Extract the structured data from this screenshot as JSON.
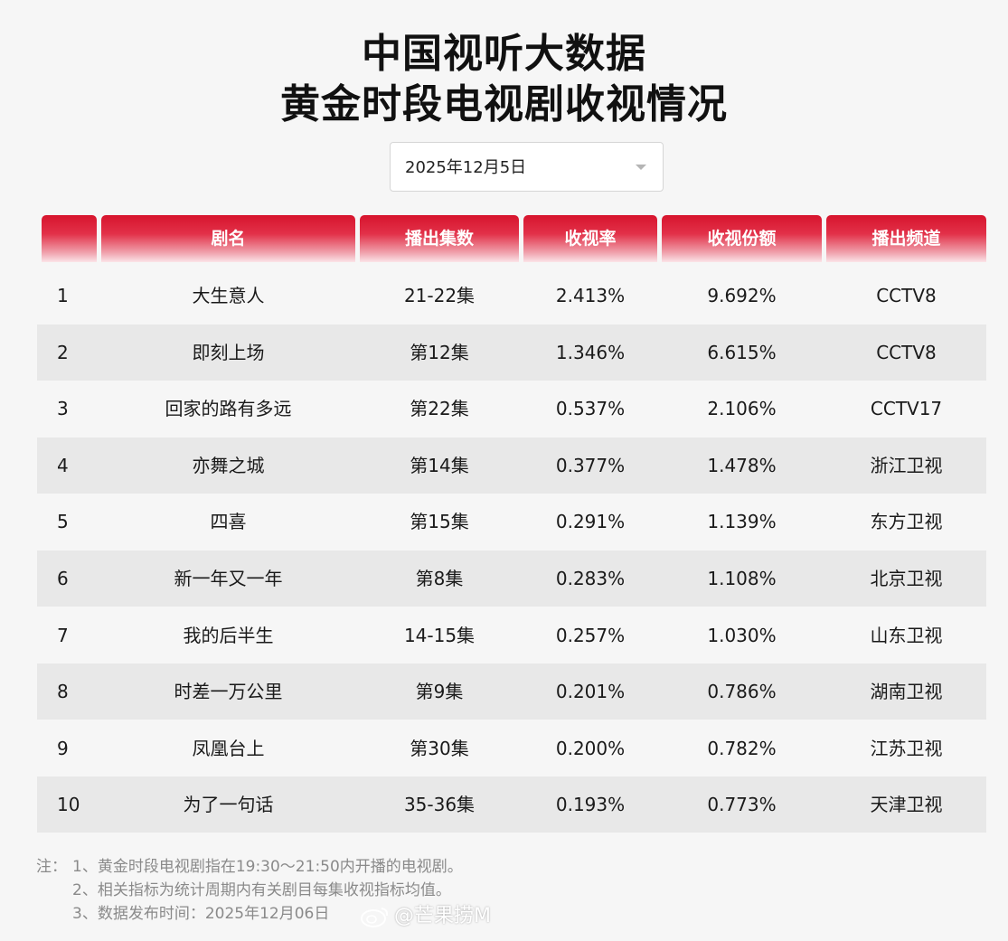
{
  "title": {
    "line1": "中国视听大数据",
    "line2": "黄金时段电视剧收视情况"
  },
  "date_select": {
    "value": "2025年12月5日"
  },
  "table": {
    "headers": [
      "",
      "剧名",
      "播出集数",
      "收视率",
      "收视份额",
      "播出频道"
    ],
    "rows": [
      [
        "1",
        "大生意人",
        "21-22集",
        "2.413%",
        "9.692%",
        "CCTV8"
      ],
      [
        "2",
        "即刻上场",
        "第12集",
        "1.346%",
        "6.615%",
        "CCTV8"
      ],
      [
        "3",
        "回家的路有多远",
        "第22集",
        "0.537%",
        "2.106%",
        "CCTV17"
      ],
      [
        "4",
        "亦舞之城",
        "第14集",
        "0.377%",
        "1.478%",
        "浙江卫视"
      ],
      [
        "5",
        "四喜",
        "第15集",
        "0.291%",
        "1.139%",
        "东方卫视"
      ],
      [
        "6",
        "新一年又一年",
        "第8集",
        "0.283%",
        "1.108%",
        "北京卫视"
      ],
      [
        "7",
        "我的后半生",
        "14-15集",
        "0.257%",
        "1.030%",
        "山东卫视"
      ],
      [
        "8",
        "时差一万公里",
        "第9集",
        "0.201%",
        "0.786%",
        "湖南卫视"
      ],
      [
        "9",
        "凤凰台上",
        "第30集",
        "0.200%",
        "0.782%",
        "江苏卫视"
      ],
      [
        "10",
        "为了一句话",
        "35-36集",
        "0.193%",
        "0.773%",
        "天津卫视"
      ]
    ]
  },
  "notes": {
    "prefix": "注：",
    "items": [
      "1、黄金时段电视剧指在19:30～21:50内开播的电视剧。",
      "2、相关指标为统计周期内有关剧目每集收视指标均值。",
      "3、数据发布时间：2025年12月06日"
    ]
  },
  "watermark": {
    "text": "@芒果捞M",
    "icon": "weibo-icon"
  },
  "colors": {
    "header_red": "#d7142d",
    "row_alt": "#e8e8e8",
    "page_bg": "#f6f6f6"
  }
}
